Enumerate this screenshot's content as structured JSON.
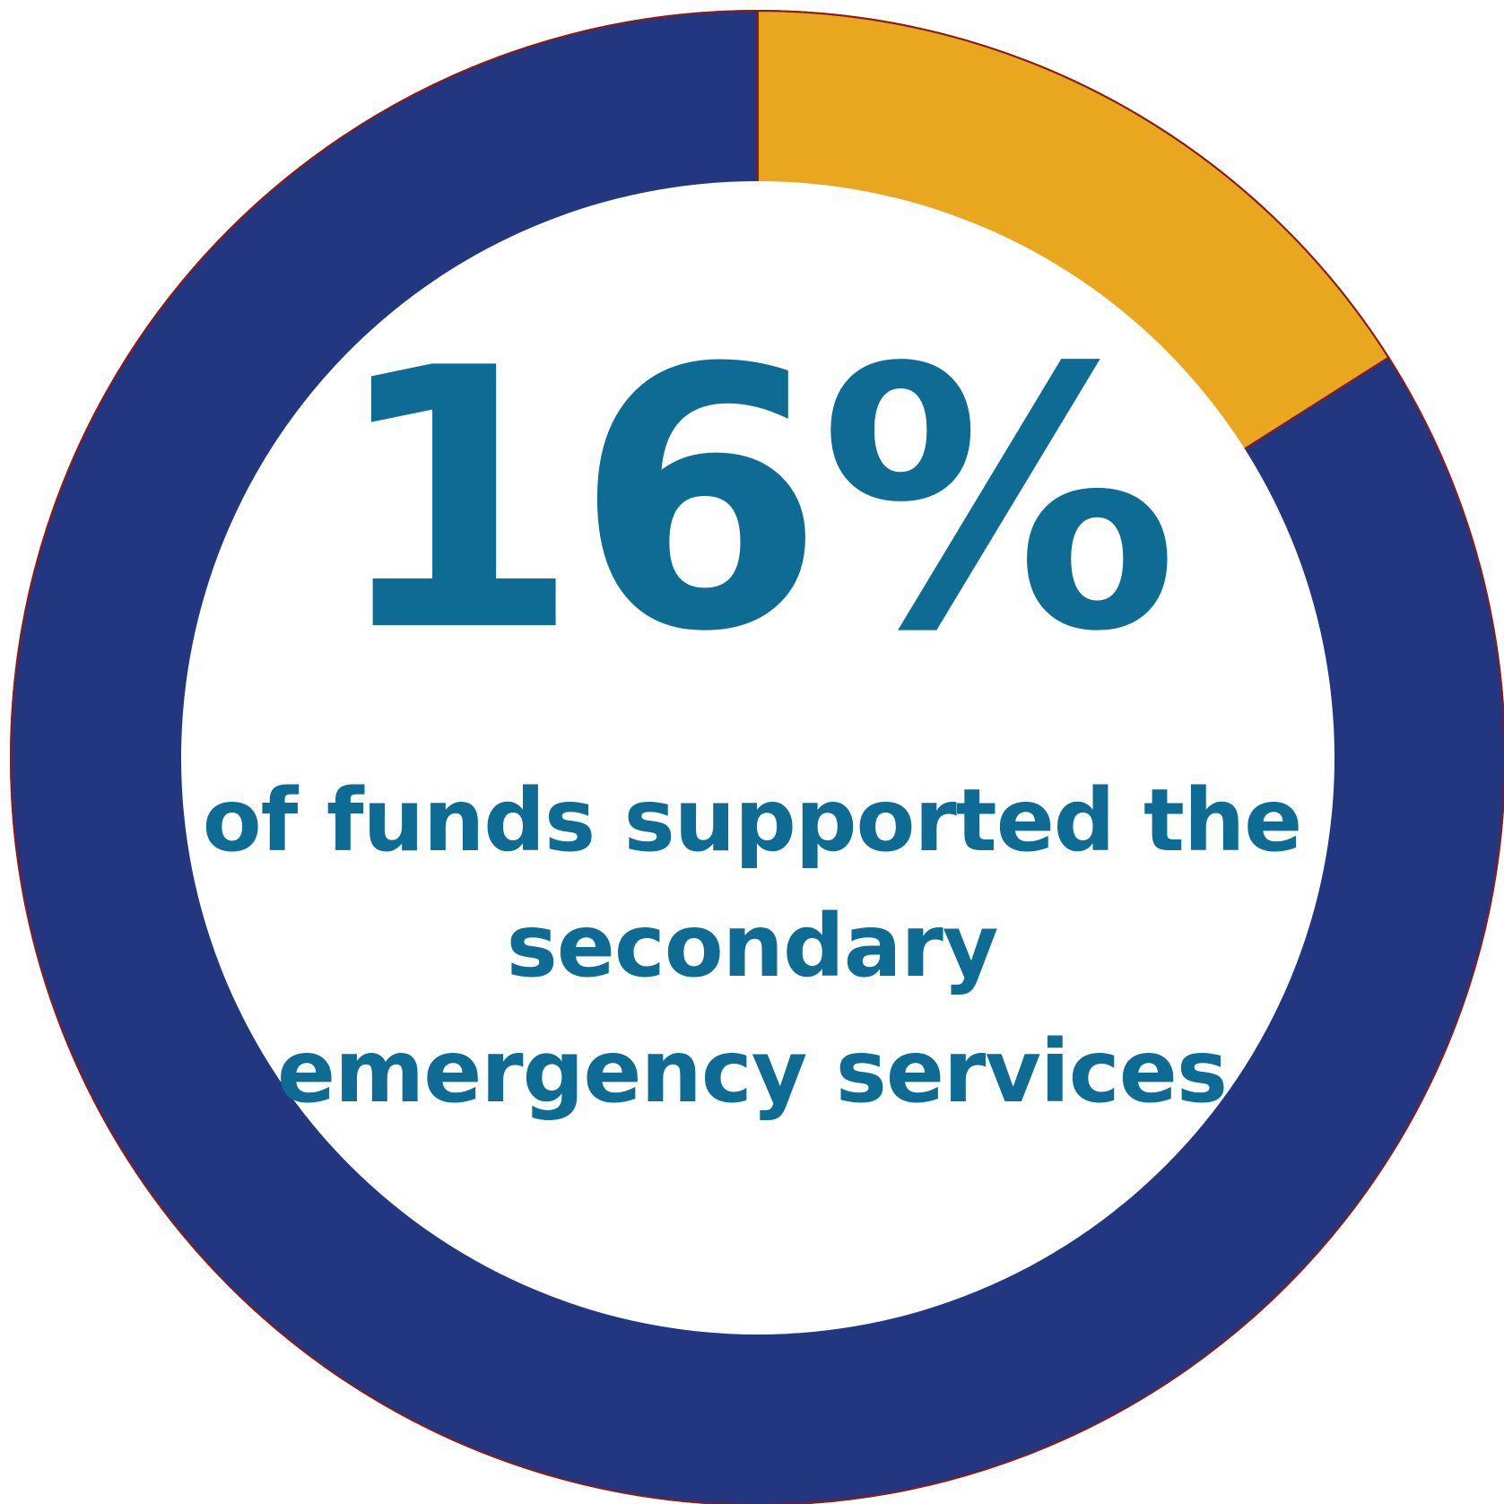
{
  "chart_data": {
    "type": "pie",
    "variant": "donut",
    "value_label": "16%",
    "caption_lines": [
      "of funds supported the",
      "secondary",
      "emergency services"
    ],
    "slices": [
      {
        "value": 16,
        "color": "#e8a71f"
      },
      {
        "value": 84,
        "color": "#233781"
      }
    ],
    "start_angle_deg": 0,
    "outline_color": "#8b1a1a",
    "center_color": "#ffffff",
    "text_color": "#0d6b94",
    "legend": "none"
  }
}
